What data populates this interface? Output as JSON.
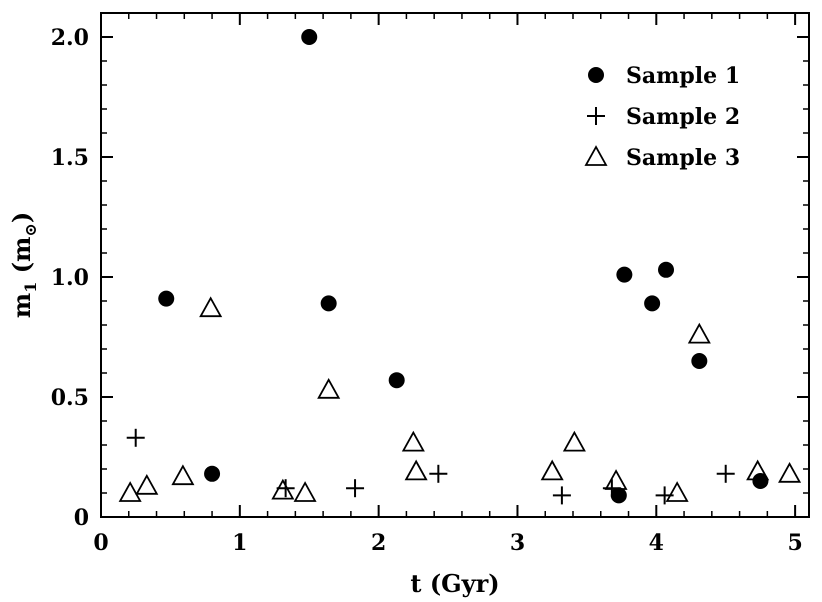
{
  "chart_data": {
    "type": "scatter",
    "title": "",
    "xlabel": "t (Gyr)",
    "ylabel_main": "m",
    "ylabel_sub": "1",
    "ylabel_unit_open": " (m",
    "ylabel_unit_sub": "⊙",
    "ylabel_unit_close": ")",
    "xlim": [
      0,
      5.1
    ],
    "ylim": [
      0,
      2.1
    ],
    "xticks": [
      0,
      1,
      2,
      3,
      4,
      5
    ],
    "xtick_labels": [
      "0",
      "1",
      "2",
      "3",
      "4",
      "5"
    ],
    "yticks": [
      0,
      0.5,
      1.0,
      1.5,
      2.0
    ],
    "ytick_labels": [
      "0",
      "0.5",
      "1.0",
      "1.5",
      "2.0"
    ],
    "grid": false,
    "legend_position": "top-right",
    "series": [
      {
        "name": "Sample 1",
        "marker": "filled-circle",
        "points": [
          {
            "x": 0.47,
            "y": 0.91
          },
          {
            "x": 0.8,
            "y": 0.18
          },
          {
            "x": 1.5,
            "y": 2.0
          },
          {
            "x": 1.64,
            "y": 0.89
          },
          {
            "x": 2.13,
            "y": 0.57
          },
          {
            "x": 3.73,
            "y": 0.09
          },
          {
            "x": 3.77,
            "y": 1.01
          },
          {
            "x": 3.97,
            "y": 0.89
          },
          {
            "x": 4.07,
            "y": 1.03
          },
          {
            "x": 4.31,
            "y": 0.65
          },
          {
            "x": 4.75,
            "y": 0.15
          }
        ]
      },
      {
        "name": "Sample 2",
        "marker": "plus",
        "points": [
          {
            "x": 0.25,
            "y": 0.33
          },
          {
            "x": 1.33,
            "y": 0.12
          },
          {
            "x": 1.83,
            "y": 0.12
          },
          {
            "x": 2.43,
            "y": 0.18
          },
          {
            "x": 3.32,
            "y": 0.09
          },
          {
            "x": 3.68,
            "y": 0.12
          },
          {
            "x": 4.06,
            "y": 0.09
          },
          {
            "x": 4.5,
            "y": 0.18
          }
        ]
      },
      {
        "name": "Sample 3",
        "marker": "open-triangle",
        "points": [
          {
            "x": 0.21,
            "y": 0.1
          },
          {
            "x": 0.33,
            "y": 0.13
          },
          {
            "x": 0.59,
            "y": 0.17
          },
          {
            "x": 0.79,
            "y": 0.87
          },
          {
            "x": 1.31,
            "y": 0.11
          },
          {
            "x": 1.47,
            "y": 0.1
          },
          {
            "x": 1.64,
            "y": 0.53
          },
          {
            "x": 2.25,
            "y": 0.31
          },
          {
            "x": 2.27,
            "y": 0.19
          },
          {
            "x": 3.25,
            "y": 0.19
          },
          {
            "x": 3.41,
            "y": 0.31
          },
          {
            "x": 3.71,
            "y": 0.15
          },
          {
            "x": 4.15,
            "y": 0.1
          },
          {
            "x": 4.31,
            "y": 0.76
          },
          {
            "x": 4.73,
            "y": 0.19
          },
          {
            "x": 4.96,
            "y": 0.18
          }
        ]
      }
    ]
  }
}
